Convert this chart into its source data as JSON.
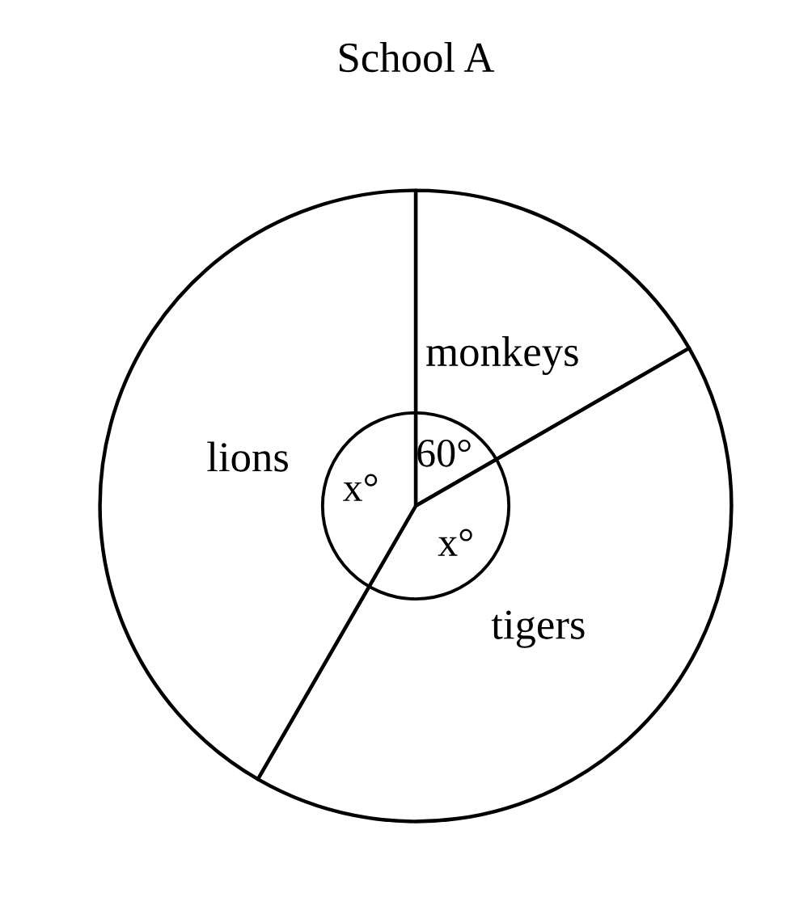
{
  "chart_data": {
    "type": "pie",
    "title": "School A",
    "categories": [
      "monkeys",
      "tigers",
      "lions"
    ],
    "values": [
      60,
      150,
      150
    ],
    "colors": [
      "#ffffff",
      "#ffffff",
      "#ffffff"
    ],
    "value_labels": [
      "60°",
      "x°",
      "x°"
    ]
  }
}
